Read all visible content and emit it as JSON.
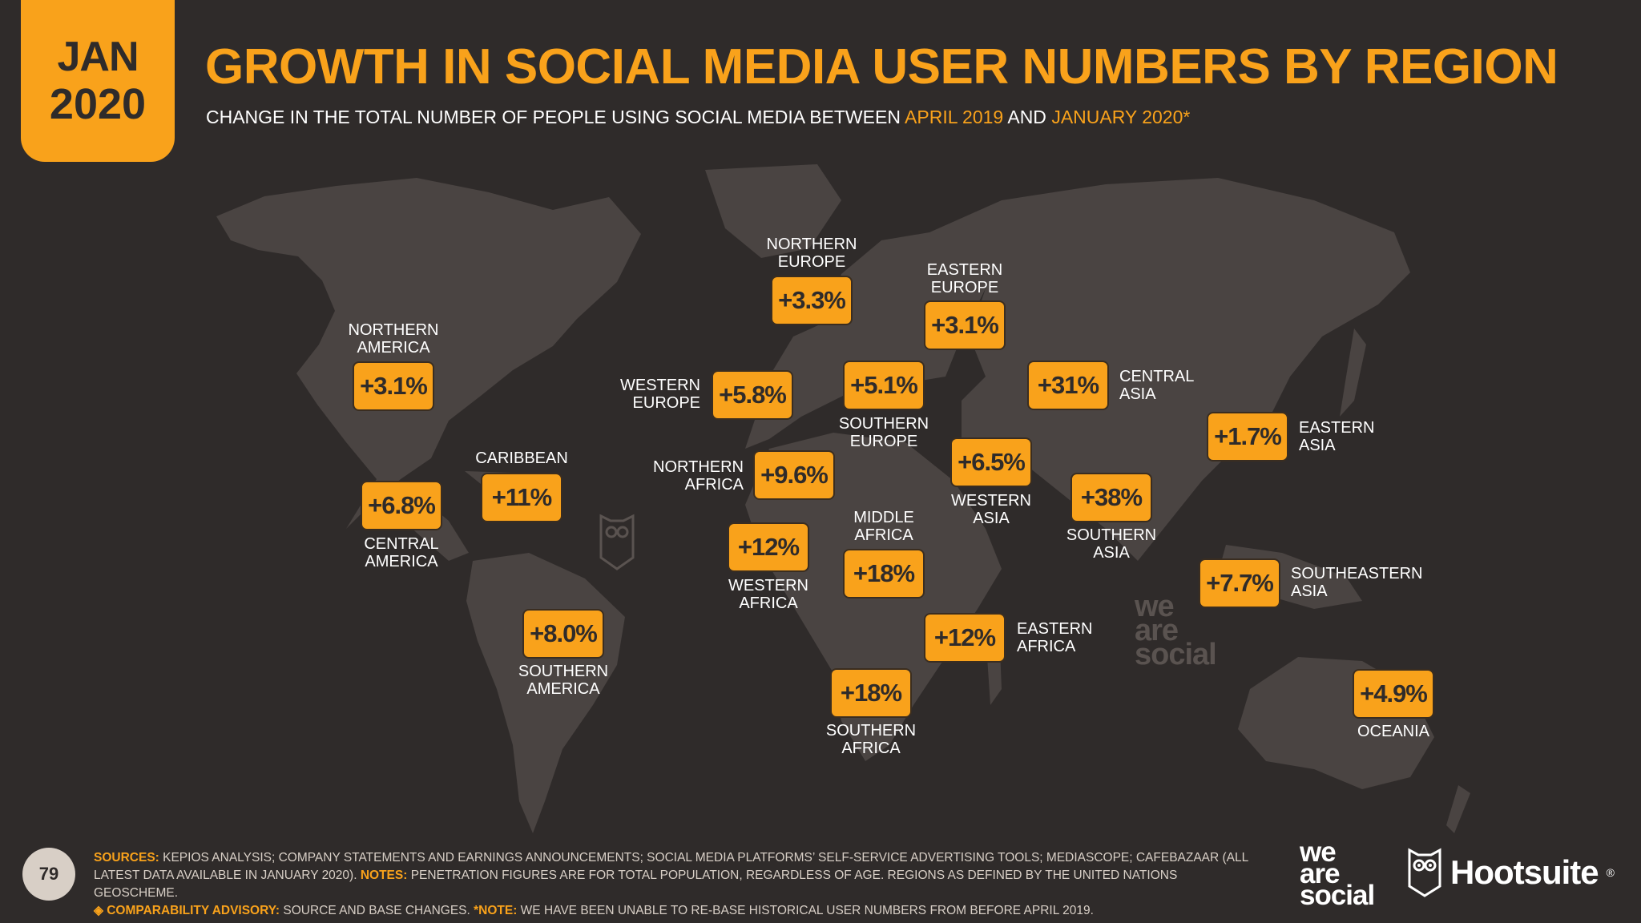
{
  "header": {
    "month": "JAN",
    "year": "2020",
    "title": "GROWTH IN SOCIAL MEDIA USER NUMBERS BY REGION",
    "subtitle_pre": "CHANGE IN THE TOTAL NUMBER OF PEOPLE USING SOCIAL MEDIA BETWEEN ",
    "subtitle_from": "APRIL 2019",
    "subtitle_mid": " AND ",
    "subtitle_to": "JANUARY 2020*"
  },
  "colors": {
    "background": "#2f2b2a",
    "accent": "#f9a21b",
    "land": "#4a4442"
  },
  "regions": [
    {
      "name": "NORTHERN\nAMERICA",
      "value": "+3.1%"
    },
    {
      "name": "CARIBBEAN",
      "value": "+11%"
    },
    {
      "name": "CENTRAL\nAMERICA",
      "value": "+6.8%"
    },
    {
      "name": "SOUTHERN\nAMERICA",
      "value": "+8.0%"
    },
    {
      "name": "NORTHERN\nEUROPE",
      "value": "+3.3%"
    },
    {
      "name": "WESTERN\nEUROPE",
      "value": "+5.8%"
    },
    {
      "name": "SOUTHERN\nEUROPE",
      "value": "+5.1%"
    },
    {
      "name": "EASTERN\nEUROPE",
      "value": "+3.1%"
    },
    {
      "name": "CENTRAL\nASIA",
      "value": "+31%"
    },
    {
      "name": "EASTERN\nASIA",
      "value": "+1.7%"
    },
    {
      "name": "WESTERN\nASIA",
      "value": "+6.5%"
    },
    {
      "name": "SOUTHERN\nASIA",
      "value": "+38%"
    },
    {
      "name": "SOUTHEASTERN\nASIA",
      "value": "+7.7%"
    },
    {
      "name": "NORTHERN\nAFRICA",
      "value": "+9.6%"
    },
    {
      "name": "WESTERN\nAFRICA",
      "value": "+12%"
    },
    {
      "name": "MIDDLE\nAFRICA",
      "value": "+18%"
    },
    {
      "name": "EASTERN\nAFRICA",
      "value": "+12%"
    },
    {
      "name": "SOUTHERN\nAFRICA",
      "value": "+18%"
    },
    {
      "name": "OCEANIA",
      "value": "+4.9%"
    }
  ],
  "footer": {
    "page_number": "79",
    "sources_label": "SOURCES:",
    "sources_text": " KEPIOS ANALYSIS; COMPANY STATEMENTS AND EARNINGS ANNOUNCEMENTS; SOCIAL MEDIA PLATFORMS’ SELF-SERVICE ADVERTISING TOOLS; MEDIASCOPE; CAFEBAZAAR (ALL LATEST DATA AVAILABLE IN JANUARY 2020). ",
    "notes_label": "NOTES:",
    "notes_text": " PENETRATION FIGURES ARE FOR TOTAL POPULATION, REGARDLESS OF AGE. REGIONS AS DEFINED BY THE UNITED NATIONS GEOSCHEME.",
    "advisory_label": "◈ COMPARABILITY ADVISORY:",
    "advisory_text": " SOURCE AND BASE CHANGES. ",
    "note_label": "*NOTE:",
    "note_text": " WE HAVE BEEN UNABLE TO RE-BASE HISTORICAL USER NUMBERS FROM BEFORE APRIL 2019."
  },
  "logos": {
    "we_are_social_1": "we",
    "we_are_social_2": "are",
    "we_are_social_3": "social",
    "hootsuite": "Hootsuite",
    "hootsuite_reg": "®"
  }
}
